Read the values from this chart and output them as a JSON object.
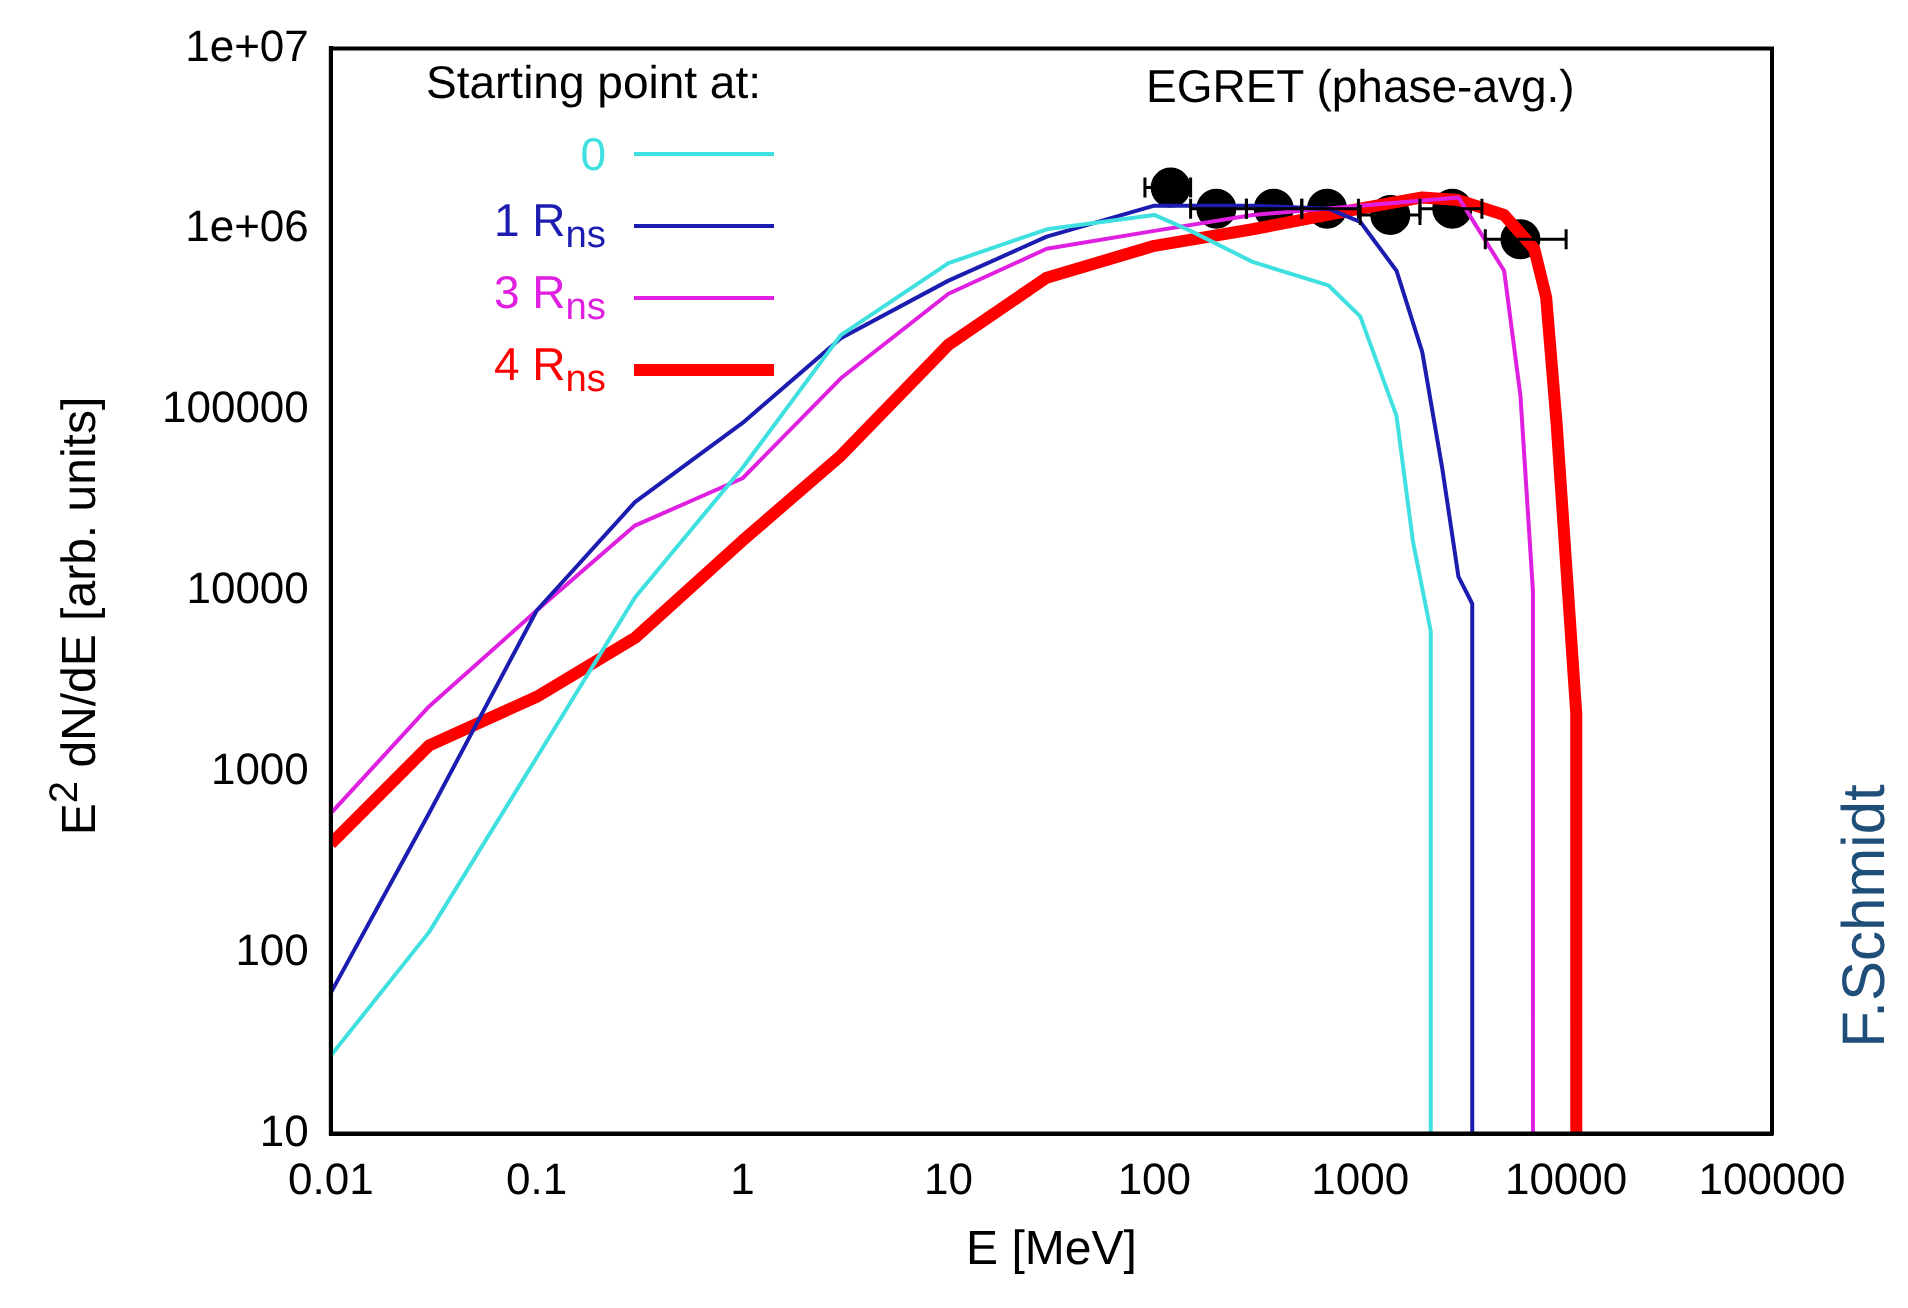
{
  "chart_data": {
    "type": "line",
    "xlabel": "E [MeV]",
    "ylabel": "E$^{2}$ dN/dE [arb. units]",
    "legend_title": "Starting point at:",
    "legend": "top left",
    "log": "xy",
    "grid": false,
    "line_style": "solid",
    "xlim": [
      0.01,
      100000
    ],
    "xticks": [
      0.01,
      0.1,
      1,
      10,
      100,
      1000,
      10000,
      100000
    ],
    "ylim": [
      10,
      10000000
    ],
    "yticks": [
      10,
      100,
      1000,
      10000,
      100000,
      {
        "value": 1000000,
        "label": "1e+06"
      },
      {
        "value": 10000000,
        "label": "1e+07"
      }
    ],
    "annotations": [
      "F.Schmidt"
    ],
    "series": [
      {
        "name": "0",
        "color": "#40e0e0",
        "x": [
          0.01,
          0.03,
          0.1,
          0.3,
          1,
          3,
          10,
          30,
          100,
          150,
          300,
          700,
          1000,
          1500,
          1800,
          2200,
          2200
        ],
        "values": [
          27,
          130,
          1200,
          9200,
          48000,
          260000,
          650000,
          1000000,
          1200000,
          980000,
          660000,
          490000,
          330000,
          93000,
          19000,
          6000,
          10
        ]
      },
      {
        "name": "1 R$_{ns}$",
        "color": "#1c1cb0",
        "x": [
          0.01,
          0.03,
          0.1,
          0.3,
          1,
          3,
          10,
          30,
          100,
          300,
          700,
          1000,
          1500,
          2000,
          2500,
          3000,
          3500,
          3500
        ],
        "values": [
          60,
          590,
          7800,
          31000,
          85000,
          250000,
          520000,
          910000,
          1350000,
          1350000,
          1300000,
          1100000,
          590000,
          210000,
          48000,
          12000,
          8500,
          10
        ]
      },
      {
        "name": "3 R$_{ns}$",
        "color": "#e020e0",
        "x": [
          0.01,
          0.03,
          0.1,
          0.3,
          1,
          3,
          10,
          30,
          100,
          300,
          1000,
          3000,
          5000,
          6000,
          6900,
          6900
        ],
        "values": [
          590,
          2300,
          7800,
          23000,
          42000,
          150000,
          440000,
          780000,
          980000,
          1200000,
          1350000,
          1500000,
          590000,
          120000,
          10000,
          10
        ]
      },
      {
        "name": "4 R$_{ns}$",
        "color": "#ff0000",
        "x": [
          0.01,
          0.03,
          0.1,
          0.3,
          1,
          3,
          10,
          30,
          100,
          300,
          1000,
          2000,
          3000,
          5000,
          7000,
          8000,
          9000,
          11200,
          11200
        ],
        "values": [
          400,
          1400,
          2600,
          5500,
          19000,
          56000,
          230000,
          540000,
          810000,
          1000000,
          1300000,
          1500000,
          1450000,
          1200000,
          780000,
          420000,
          83000,
          2100,
          10
        ]
      },
      {
        "name": "EGRET (phase-avg.)",
        "type": "scatter",
        "marker": "circle",
        "color": "#000000",
        "x": [
          120,
          200,
          380,
          690,
          1400,
          2800,
          6000
        ],
        "values": [
          1700000,
          1300000,
          1300000,
          1300000,
          1200000,
          1300000,
          880000
        ],
        "xerrors": [
          [
            90,
            150
          ],
          [
            150,
            280
          ],
          [
            280,
            520
          ],
          [
            520,
            980
          ],
          [
            1000,
            1950
          ],
          [
            1950,
            3900
          ],
          [
            4050,
            10000
          ]
        ]
      }
    ]
  }
}
